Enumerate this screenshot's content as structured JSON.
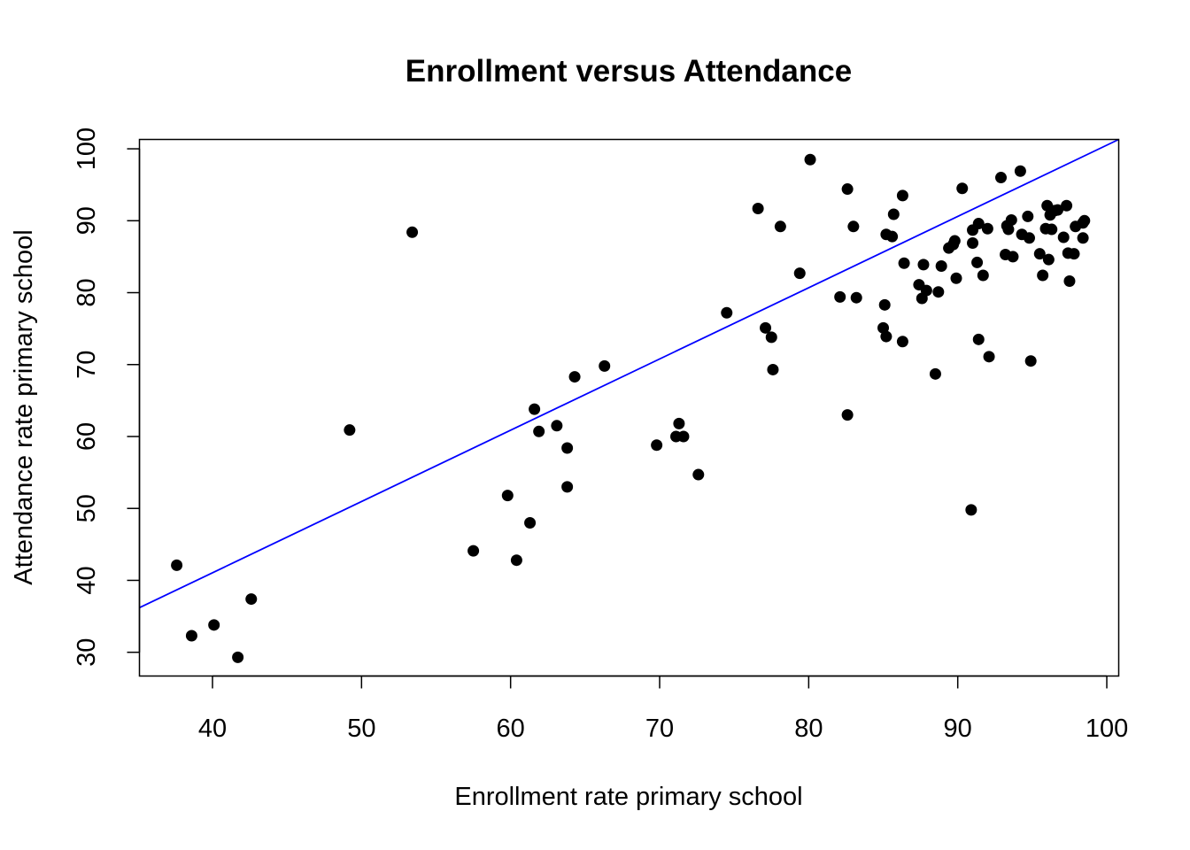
{
  "chart_data": {
    "type": "scatter",
    "title": "Enrollment versus Attendance",
    "xlabel": "Enrollment rate primary school",
    "ylabel": "Attendance rate primary school",
    "xlim": [
      35.1,
      100.8
    ],
    "ylim": [
      26.7,
      101.3
    ],
    "xticks": [
      40,
      50,
      60,
      70,
      80,
      90,
      100
    ],
    "yticks": [
      30,
      40,
      50,
      60,
      70,
      80,
      90,
      100
    ],
    "grid": false,
    "point_color": "#000000",
    "fit_line": {
      "color": "#0000ff",
      "x": [
        35.1,
        100.8
      ],
      "y": [
        36.2,
        101.3
      ]
    },
    "points": [
      [
        37.6,
        42.1
      ],
      [
        38.6,
        32.3
      ],
      [
        40.1,
        33.8
      ],
      [
        41.7,
        29.3
      ],
      [
        42.6,
        37.4
      ],
      [
        49.2,
        60.9
      ],
      [
        53.4,
        88.4
      ],
      [
        57.5,
        44.1
      ],
      [
        59.8,
        51.8
      ],
      [
        60.4,
        42.8
      ],
      [
        61.3,
        48.0
      ],
      [
        61.6,
        63.8
      ],
      [
        61.9,
        60.7
      ],
      [
        63.1,
        61.5
      ],
      [
        63.8,
        58.4
      ],
      [
        63.8,
        53.0
      ],
      [
        64.3,
        68.3
      ],
      [
        66.3,
        69.8
      ],
      [
        69.8,
        58.8
      ],
      [
        71.1,
        60.0
      ],
      [
        71.3,
        61.8
      ],
      [
        71.6,
        60.0
      ],
      [
        72.6,
        54.7
      ],
      [
        74.5,
        77.2
      ],
      [
        76.6,
        91.7
      ],
      [
        77.1,
        75.1
      ],
      [
        77.5,
        73.8
      ],
      [
        77.6,
        69.3
      ],
      [
        78.1,
        89.2
      ],
      [
        79.4,
        82.7
      ],
      [
        80.1,
        98.5
      ],
      [
        82.1,
        79.4
      ],
      [
        82.6,
        94.4
      ],
      [
        82.6,
        63.0
      ],
      [
        83.0,
        89.2
      ],
      [
        83.2,
        79.3
      ],
      [
        85.0,
        75.1
      ],
      [
        85.1,
        78.3
      ],
      [
        85.2,
        73.9
      ],
      [
        85.2,
        88.1
      ],
      [
        85.6,
        87.8
      ],
      [
        85.7,
        90.9
      ],
      [
        86.3,
        93.5
      ],
      [
        86.3,
        73.2
      ],
      [
        86.4,
        84.1
      ],
      [
        87.4,
        81.1
      ],
      [
        87.6,
        79.2
      ],
      [
        87.7,
        83.9
      ],
      [
        87.9,
        80.3
      ],
      [
        88.5,
        68.7
      ],
      [
        88.7,
        80.1
      ],
      [
        88.9,
        83.7
      ],
      [
        89.4,
        86.2
      ],
      [
        89.7,
        86.7
      ],
      [
        89.8,
        87.2
      ],
      [
        89.9,
        82.0
      ],
      [
        90.3,
        94.5
      ],
      [
        90.9,
        49.8
      ],
      [
        91.0,
        86.9
      ],
      [
        91.0,
        88.7
      ],
      [
        91.3,
        84.2
      ],
      [
        91.4,
        89.6
      ],
      [
        91.4,
        73.5
      ],
      [
        91.7,
        82.4
      ],
      [
        92.0,
        88.9
      ],
      [
        92.1,
        71.1
      ],
      [
        92.9,
        96.0
      ],
      [
        93.2,
        85.3
      ],
      [
        93.3,
        89.3
      ],
      [
        93.4,
        88.8
      ],
      [
        93.6,
        90.1
      ],
      [
        93.7,
        85.0
      ],
      [
        94.2,
        96.9
      ],
      [
        94.3,
        88.1
      ],
      [
        94.7,
        90.6
      ],
      [
        94.8,
        87.6
      ],
      [
        94.9,
        70.5
      ],
      [
        95.5,
        85.4
      ],
      [
        95.7,
        82.4
      ],
      [
        95.9,
        88.9
      ],
      [
        96.0,
        92.1
      ],
      [
        96.1,
        84.6
      ],
      [
        96.2,
        90.8
      ],
      [
        96.3,
        88.8
      ],
      [
        96.5,
        91.4
      ],
      [
        96.7,
        91.5
      ],
      [
        97.1,
        87.7
      ],
      [
        97.3,
        92.1
      ],
      [
        97.4,
        85.5
      ],
      [
        97.5,
        81.6
      ],
      [
        97.8,
        85.4
      ],
      [
        97.9,
        89.2
      ],
      [
        98.4,
        87.6
      ],
      [
        98.4,
        89.7
      ],
      [
        98.5,
        90.0
      ]
    ]
  }
}
